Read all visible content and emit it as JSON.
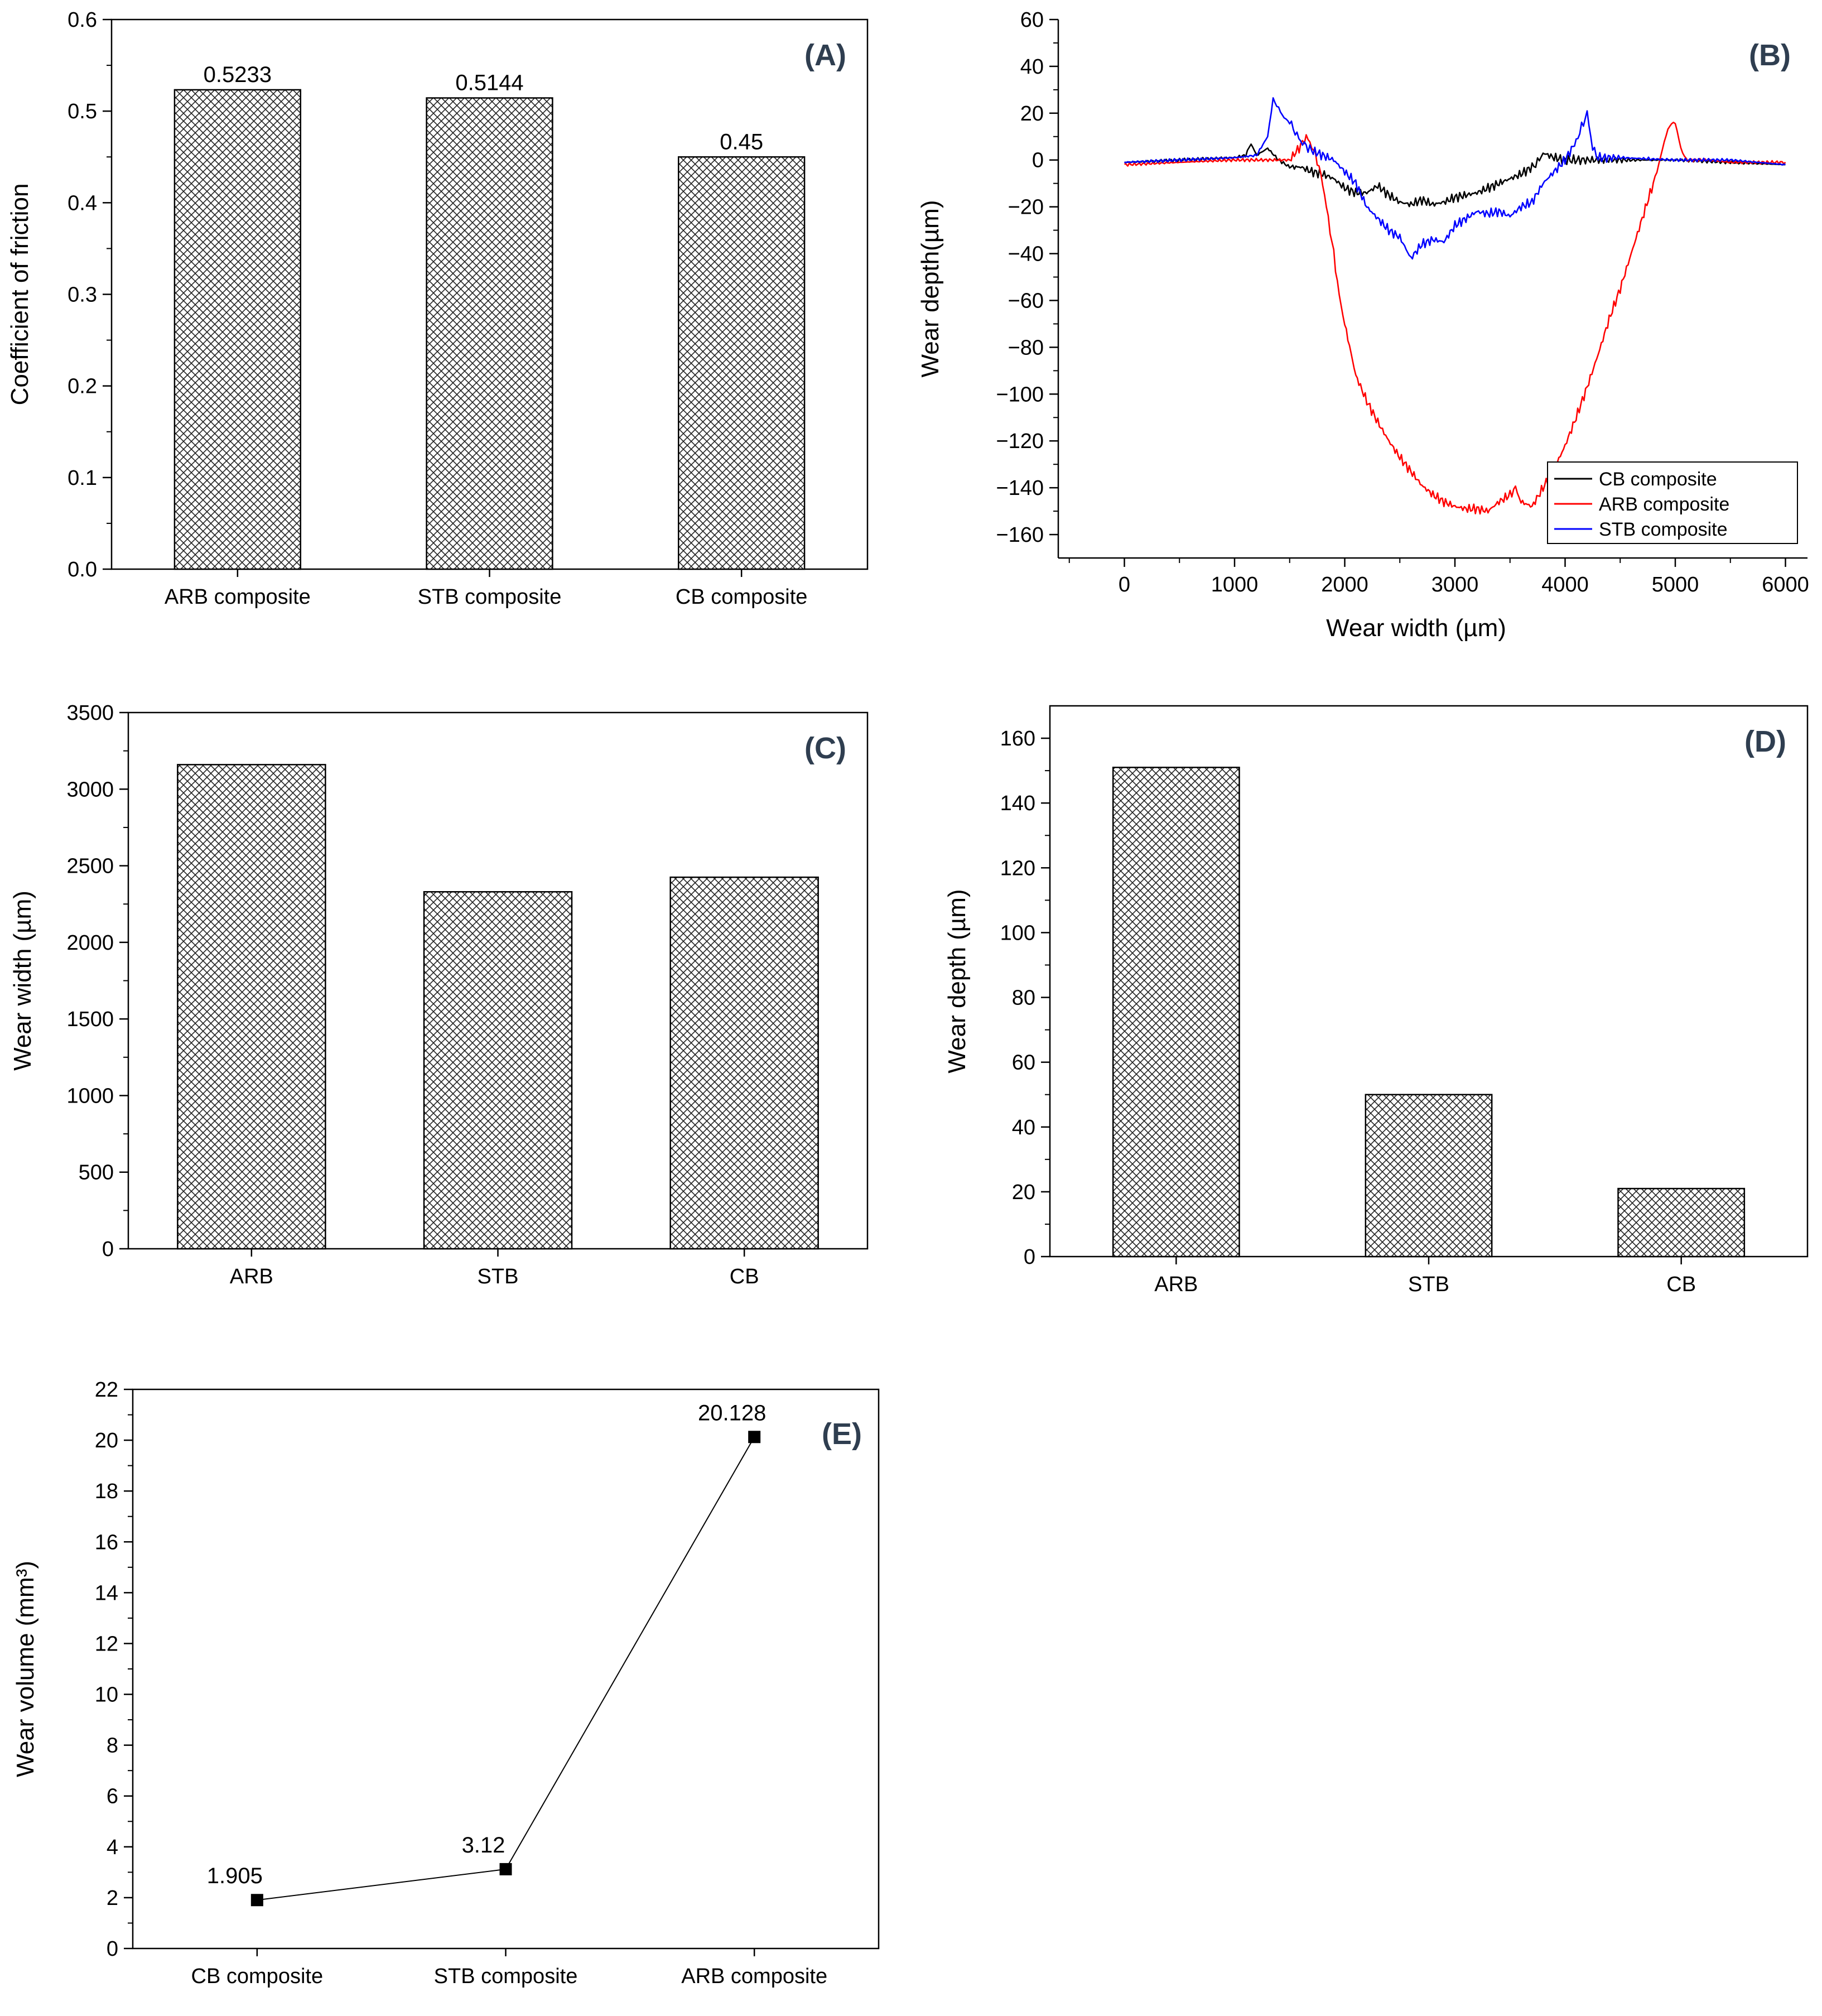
{
  "chart_data": [
    {
      "id": "A",
      "type": "bar",
      "panel_label": "(A)",
      "categories": [
        "ARB composite",
        "STB composite",
        "CB composite"
      ],
      "values": [
        0.5233,
        0.5144,
        0.45
      ],
      "data_labels": [
        "0.5233",
        "0.5144",
        "0.45"
      ],
      "xlabel": "",
      "ylabel": "Coefficient of friction",
      "ylim": [
        0,
        0.6
      ],
      "yticks": [
        0.0,
        0.1,
        0.2,
        0.3,
        0.4,
        0.5,
        0.6
      ],
      "ytick_labels": [
        "0.0",
        "0.1",
        "0.2",
        "0.3",
        "0.4",
        "0.5",
        "0.6"
      ],
      "ytick_decimals": 1
    },
    {
      "id": "B",
      "type": "line",
      "panel_label": "(B)",
      "xlabel": "Wear width (µm)",
      "ylabel": "Wear depth(µm)",
      "xlim": [
        -600,
        6200
      ],
      "ylim": [
        -170,
        60
      ],
      "xticks": [
        0,
        1000,
        2000,
        3000,
        4000,
        5000,
        6000
      ],
      "yticks": [
        60,
        40,
        20,
        0,
        -20,
        -40,
        -60,
        -80,
        -100,
        -120,
        -140,
        -160
      ],
      "legend_position": "bottom-right",
      "series": [
        {
          "name": "CB composite",
          "color": "#000000",
          "x": [
            0,
            500,
            1000,
            1100,
            1150,
            1200,
            1300,
            1400,
            1500,
            1600,
            1700,
            1800,
            1900,
            2000,
            2100,
            2200,
            2300,
            2400,
            2500,
            2600,
            2700,
            2800,
            2900,
            3000,
            3100,
            3200,
            3300,
            3400,
            3500,
            3600,
            3700,
            3750,
            3800,
            3900,
            4000,
            4200,
            4500,
            5000,
            5500,
            6000
          ],
          "y": [
            -1,
            0,
            1,
            2,
            7,
            2,
            5,
            0,
            -3,
            -3,
            -5,
            -6,
            -8,
            -12,
            -14,
            -14,
            -11,
            -15,
            -18,
            -19,
            -17,
            -19,
            -18,
            -16,
            -15,
            -14,
            -12,
            -10,
            -8,
            -6,
            -3,
            -1,
            3,
            1,
            0,
            0,
            0,
            0,
            -1,
            -2
          ]
        },
        {
          "name": "ARB composite",
          "color": "#ff0000",
          "x": [
            0,
            500,
            1000,
            1500,
            1600,
            1650,
            1700,
            1750,
            1800,
            1850,
            1900,
            1950,
            2000,
            2100,
            2200,
            2300,
            2400,
            2500,
            2600,
            2700,
            2800,
            2900,
            3000,
            3100,
            3200,
            3300,
            3400,
            3500,
            3550,
            3600,
            3700,
            3800,
            3900,
            4000,
            4100,
            4200,
            4300,
            4400,
            4500,
            4600,
            4700,
            4800,
            4850,
            4900,
            4950,
            5000,
            5050,
            5100,
            5300,
            5500,
            6000
          ],
          "y": [
            -2,
            -1,
            0,
            0,
            6,
            10,
            6,
            0,
            -10,
            -25,
            -40,
            -58,
            -70,
            -92,
            -103,
            -112,
            -120,
            -127,
            -133,
            -139,
            -143,
            -146,
            -148,
            -149,
            -149,
            -150,
            -146,
            -143,
            -140,
            -146,
            -148,
            -140,
            -132,
            -122,
            -110,
            -97,
            -83,
            -68,
            -55,
            -40,
            -25,
            -10,
            -2,
            8,
            15,
            16,
            5,
            0,
            0,
            -1,
            -1
          ]
        },
        {
          "name": "STB composite",
          "color": "#0000ff",
          "x": [
            0,
            500,
            1000,
            1200,
            1300,
            1350,
            1400,
            1450,
            1500,
            1550,
            1600,
            1650,
            1700,
            1800,
            1900,
            2000,
            2100,
            2200,
            2300,
            2400,
            2500,
            2600,
            2700,
            2800,
            2900,
            3000,
            3100,
            3200,
            3300,
            3400,
            3500,
            3600,
            3700,
            3800,
            3900,
            4000,
            4100,
            4150,
            4200,
            4250,
            4300,
            4500,
            5000,
            5500,
            6000
          ],
          "y": [
            -1,
            0,
            1,
            2,
            10,
            26,
            22,
            18,
            16,
            12,
            8,
            6,
            4,
            2,
            0,
            -5,
            -10,
            -20,
            -25,
            -30,
            -33,
            -42,
            -36,
            -34,
            -35,
            -28,
            -25,
            -22,
            -23,
            -22,
            -24,
            -20,
            -18,
            -10,
            -5,
            0,
            8,
            14,
            20,
            5,
            1,
            1,
            0,
            0,
            -2
          ]
        }
      ]
    },
    {
      "id": "C",
      "type": "bar",
      "panel_label": "(C)",
      "categories": [
        "ARB",
        "STB",
        "CB"
      ],
      "values": [
        3160,
        2330,
        2425
      ],
      "xlabel": "",
      "ylabel": "Wear width (µm)",
      "ylim": [
        0,
        3500
      ],
      "yticks": [
        0,
        500,
        1000,
        1500,
        2000,
        2500,
        3000,
        3500
      ]
    },
    {
      "id": "D",
      "type": "bar",
      "panel_label": "(D)",
      "categories": [
        "ARB",
        "STB",
        "CB"
      ],
      "values": [
        151,
        50,
        21
      ],
      "xlabel": "",
      "ylabel": "Wear depth (µm)",
      "ylim": [
        0,
        170
      ],
      "yticks": [
        0,
        20,
        40,
        60,
        80,
        100,
        120,
        140,
        160
      ]
    },
    {
      "id": "E",
      "type": "line",
      "panel_label": "(E)",
      "categories": [
        "CB composite",
        "STB composite",
        "ARB composite"
      ],
      "values": [
        1.905,
        3.12,
        20.128
      ],
      "data_labels": [
        "1.905",
        "3.12",
        "20.128"
      ],
      "xlabel": "",
      "ylabel": "Wear volume (mm³)",
      "ylim": [
        0,
        22
      ],
      "yticks": [
        0,
        2,
        4,
        6,
        8,
        10,
        12,
        14,
        16,
        18,
        20,
        22
      ]
    }
  ]
}
